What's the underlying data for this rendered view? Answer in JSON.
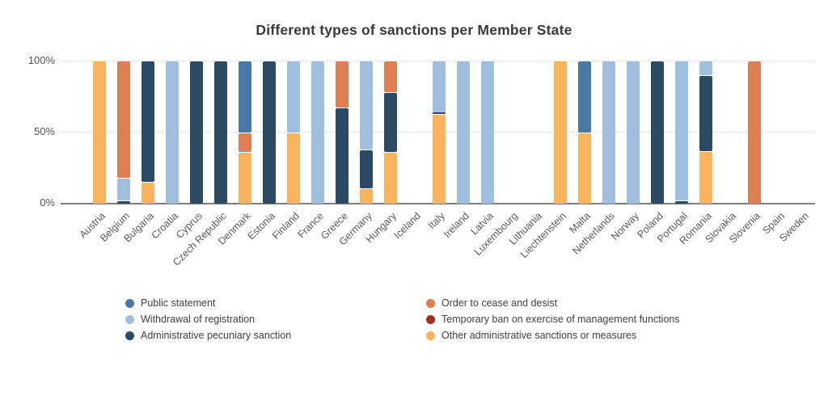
{
  "title": "Different types of sanctions per Member State",
  "y_axis": {
    "ticks": [
      "100%",
      "50%",
      "0%"
    ]
  },
  "legend": {
    "items": [
      {
        "label": "Public statement",
        "color": "#4878A6"
      },
      {
        "label": "Withdrawal of registration",
        "color": "#A0BEDD"
      },
      {
        "label": "Administrative pecuniary sanction",
        "color": "#2B4A63"
      },
      {
        "label": "Order to cease and desist",
        "color": "#DE7E53"
      },
      {
        "label": "Temporary ban on exercise of management functions",
        "color": "#A52B1E"
      },
      {
        "label": "Other administrative sanctions or measures",
        "color": "#F9B45D"
      }
    ]
  },
  "chart_data": {
    "type": "bar",
    "stacked": true,
    "title": "Different types of sanctions per Member State",
    "xlabel": "",
    "ylabel": "",
    "ylim": [
      0,
      100
    ],
    "yticks_pct": [
      0,
      50,
      100
    ],
    "grid": true,
    "legend_position": "bottom",
    "categories": [
      "Austria",
      "Belgium",
      "Bulgaria",
      "Croatia",
      "Cyprus",
      "Czech Republic",
      "Denmark",
      "Estonia",
      "Finland",
      "France",
      "Greece",
      "Germany",
      "Hungary",
      "Iceland",
      "Italy",
      "Ireland",
      "Latvia",
      "Luxembourg",
      "Lithuania",
      "Liechtenstein",
      "Malta",
      "Netherlands",
      "Norway",
      "Poland",
      "Portugal",
      "Romania",
      "Slovakia",
      "Slovenia",
      "Spain",
      "Sweden"
    ],
    "series": [
      {
        "name": "Public statement",
        "color": "#4878A6",
        "values": [
          0,
          0,
          0,
          0,
          0,
          0,
          50,
          0,
          0,
          0,
          0,
          0,
          0,
          0,
          0,
          0,
          0,
          0,
          0,
          0,
          50,
          0,
          0,
          0,
          0,
          0,
          0,
          0,
          0,
          0
        ]
      },
      {
        "name": "Withdrawal of registration",
        "color": "#A0BEDD",
        "values": [
          0,
          16,
          0,
          100,
          0,
          0,
          0,
          0,
          50,
          100,
          0,
          62,
          0,
          0,
          36,
          100,
          100,
          0,
          0,
          0,
          0,
          100,
          100,
          0,
          98,
          10,
          0,
          0,
          0,
          0
        ]
      },
      {
        "name": "Administrative pecuniary sanction",
        "color": "#2B4A63",
        "values": [
          0,
          2,
          85,
          0,
          100,
          100,
          0,
          100,
          0,
          0,
          67,
          27,
          42,
          0,
          1,
          0,
          0,
          0,
          0,
          0,
          0,
          0,
          0,
          100,
          2,
          53,
          0,
          0,
          0,
          0
        ]
      },
      {
        "name": "Order to cease and desist",
        "color": "#DE7E53",
        "values": [
          0,
          82,
          0,
          0,
          0,
          0,
          14,
          0,
          0,
          0,
          33,
          0,
          22,
          0,
          0,
          0,
          0,
          0,
          0,
          0,
          0,
          0,
          0,
          0,
          0,
          0,
          0,
          100,
          0,
          0
        ]
      },
      {
        "name": "Temporary ban on exercise of management functions",
        "color": "#A52B1E",
        "values": [
          0,
          0,
          0,
          0,
          0,
          0,
          0,
          0,
          0,
          0,
          0,
          0,
          0,
          0,
          0,
          0,
          0,
          0,
          0,
          0,
          0,
          0,
          0,
          0,
          0,
          0,
          0,
          0,
          0,
          0
        ]
      },
      {
        "name": "Other administrative sanctions or measures",
        "color": "#F9B45D",
        "values": [
          100,
          0,
          15,
          0,
          0,
          0,
          36,
          0,
          50,
          0,
          0,
          11,
          36,
          0,
          63,
          0,
          0,
          0,
          0,
          100,
          50,
          0,
          0,
          0,
          0,
          37,
          0,
          0,
          0,
          0
        ]
      }
    ],
    "stack_order_bottom_to_top": [
      "Other administrative sanctions or measures",
      "Administrative pecuniary sanction",
      "Withdrawal of registration",
      "Order to cease and desist",
      "Public statement",
      "Temporary ban on exercise of management functions"
    ]
  }
}
